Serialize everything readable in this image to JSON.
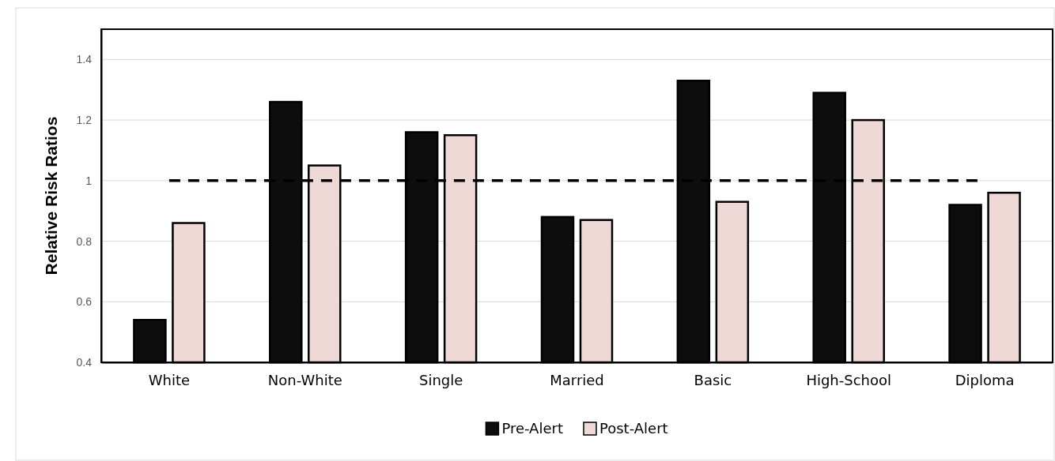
{
  "chart_data": {
    "type": "bar",
    "ylabel": "Relative Risk Ratios",
    "categories": [
      "White",
      "Non-White",
      "Single",
      "Married",
      "Basic",
      "High-School",
      "Diploma"
    ],
    "series": [
      {
        "name": "Pre-Alert",
        "color": "#0d0d0d",
        "values": [
          0.54,
          1.26,
          1.16,
          0.88,
          1.33,
          1.29,
          0.92
        ]
      },
      {
        "name": "Post-Alert",
        "color": "#eed9d7",
        "values": [
          0.86,
          1.05,
          1.15,
          0.87,
          0.93,
          1.2,
          0.96
        ]
      }
    ],
    "ylim": [
      0.4,
      1.5
    ],
    "yticks": [
      0.4,
      0.6,
      0.8,
      1,
      1.2,
      1.4
    ],
    "grid": "y",
    "legend": "bottom",
    "ref_lines": [
      {
        "axis": "y",
        "value": 1,
        "color": "#000000",
        "line_style": "dashed"
      }
    ]
  }
}
